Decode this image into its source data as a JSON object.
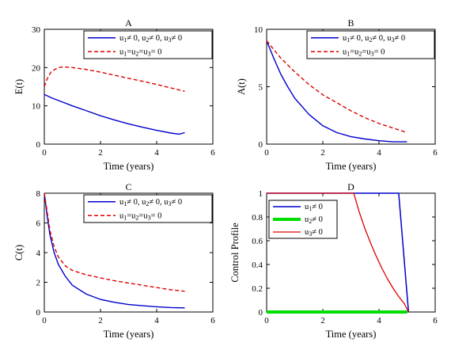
{
  "colors": {
    "blue": "#0000cc",
    "red": "#dd0000",
    "green": "#00dd00",
    "axis": "#000000"
  },
  "chart_data": [
    {
      "type": "line",
      "title": "A",
      "xlabel": "Time (years)",
      "ylabel": "E(t)",
      "xlim": [
        0,
        6
      ],
      "ylim": [
        0,
        30
      ],
      "xticks": [
        "0",
        "2",
        "4",
        "6"
      ],
      "yticks": [
        "0",
        "10",
        "20",
        "30"
      ],
      "legend_position": "top-right",
      "series": [
        {
          "name_parts": [
            "u",
            "1",
            "≠ 0, u",
            "2",
            "≠ 0, u",
            "3",
            "≠ 0"
          ],
          "color": "#0000cc",
          "dash": "solid",
          "x": [
            0,
            0.25,
            0.5,
            1,
            1.5,
            2,
            2.5,
            3,
            3.5,
            4,
            4.5,
            4.8,
            5
          ],
          "y": [
            13,
            12.1,
            11.4,
            10,
            8.7,
            7.4,
            6.3,
            5.3,
            4.4,
            3.6,
            2.9,
            2.6,
            3
          ]
        },
        {
          "name_parts": [
            "u",
            "1",
            "=u",
            "2",
            "=u",
            "3",
            "= 0"
          ],
          "color": "#dd0000",
          "dash": "dashed",
          "x": [
            0,
            0.1,
            0.25,
            0.5,
            0.7,
            1,
            1.5,
            2,
            2.5,
            3,
            3.5,
            4,
            4.5,
            5
          ],
          "y": [
            15,
            17,
            19,
            20,
            20.2,
            20,
            19.5,
            18.8,
            18,
            17.2,
            16.4,
            15.6,
            14.7,
            13.8
          ]
        }
      ]
    },
    {
      "type": "line",
      "title": "B",
      "xlabel": "Time (years)",
      "ylabel": "A(t)",
      "xlim": [
        0,
        6
      ],
      "ylim": [
        0,
        10
      ],
      "xticks": [
        "0",
        "2",
        "4",
        "6"
      ],
      "yticks": [
        "0",
        "5",
        "10"
      ],
      "legend_position": "top-right",
      "series": [
        {
          "name_parts": [
            "u",
            "1",
            "≠ 0, u",
            "2",
            "≠ 0, u",
            "3",
            "≠ 0"
          ],
          "color": "#0000cc",
          "dash": "solid",
          "x": [
            0,
            0.25,
            0.5,
            0.75,
            1,
            1.5,
            2,
            2.5,
            3,
            3.5,
            4,
            4.5,
            5
          ],
          "y": [
            9,
            7.5,
            6.1,
            5,
            4,
            2.6,
            1.6,
            1,
            0.65,
            0.45,
            0.3,
            0.2,
            0.2
          ]
        },
        {
          "name_parts": [
            "u",
            "1",
            "=u",
            "2",
            "=u",
            "3",
            "= 0"
          ],
          "color": "#dd0000",
          "dash": "dashed",
          "x": [
            0,
            0.5,
            1,
            1.5,
            2,
            2.5,
            3,
            3.5,
            4,
            4.5,
            5
          ],
          "y": [
            9,
            7.5,
            6.3,
            5.2,
            4.3,
            3.6,
            2.9,
            2.3,
            1.8,
            1.4,
            1
          ]
        }
      ]
    },
    {
      "type": "line",
      "title": "C",
      "xlabel": "Time (years)",
      "ylabel": "C(t)",
      "xlim": [
        0,
        6
      ],
      "ylim": [
        0,
        8
      ],
      "xticks": [
        "0",
        "2",
        "4",
        "6"
      ],
      "yticks": [
        "0",
        "2",
        "4",
        "6",
        "8"
      ],
      "legend_position": "top-right",
      "series": [
        {
          "name_parts": [
            "u",
            "1",
            "≠ 0, u",
            "2",
            "≠ 0, u",
            "3",
            "≠ 0"
          ],
          "color": "#0000cc",
          "dash": "solid",
          "x": [
            0,
            0.1,
            0.2,
            0.35,
            0.5,
            0.75,
            1,
            1.5,
            2,
            2.5,
            3,
            3.5,
            4,
            4.5,
            5
          ],
          "y": [
            8,
            6.5,
            5.2,
            4,
            3.2,
            2.4,
            1.8,
            1.2,
            0.85,
            0.65,
            0.5,
            0.42,
            0.35,
            0.3,
            0.28
          ]
        },
        {
          "name_parts": [
            "u",
            "1",
            "=u",
            "2",
            "=u",
            "3",
            "= 0"
          ],
          "color": "#dd0000",
          "dash": "dashed",
          "x": [
            0,
            0.1,
            0.2,
            0.35,
            0.5,
            0.75,
            1,
            1.5,
            2,
            2.5,
            3,
            3.5,
            4,
            4.5,
            5
          ],
          "y": [
            8,
            6.8,
            5.5,
            4.4,
            3.7,
            3.1,
            2.8,
            2.5,
            2.3,
            2.1,
            1.95,
            1.8,
            1.65,
            1.5,
            1.4
          ]
        }
      ]
    },
    {
      "type": "line",
      "title": "D",
      "xlabel": "Time (years)",
      "ylabel": "Control Profile",
      "xlim": [
        0,
        6
      ],
      "ylim": [
        0,
        1
      ],
      "xticks": [
        "0",
        "2",
        "4",
        "6"
      ],
      "yticks": [
        "0",
        "0.2",
        "0.4",
        "0.6",
        "0.8",
        "1"
      ],
      "legend_position": "top-left",
      "series": [
        {
          "name_parts": [
            "u",
            "1",
            "≠ 0"
          ],
          "color": "#0000cc",
          "dash": "solid",
          "width": 1.5,
          "x": [
            0,
            4.7,
            5.05
          ],
          "y": [
            1,
            1,
            0
          ]
        },
        {
          "name_parts": [
            "u",
            "2",
            "≠ 0"
          ],
          "color": "#00dd00",
          "dash": "solid",
          "width": 4,
          "x": [
            0,
            5
          ],
          "y": [
            0,
            0
          ]
        },
        {
          "name_parts": [
            "u",
            "3",
            "≠ 0"
          ],
          "color": "#dd0000",
          "dash": "solid",
          "width": 1.3,
          "x": [
            0,
            3.1,
            3.3,
            3.5,
            3.7,
            3.9,
            4.1,
            4.3,
            4.5,
            4.7,
            4.9,
            5.05
          ],
          "y": [
            1,
            1,
            0.84,
            0.7,
            0.58,
            0.47,
            0.37,
            0.28,
            0.2,
            0.13,
            0.07,
            0
          ]
        }
      ]
    }
  ]
}
